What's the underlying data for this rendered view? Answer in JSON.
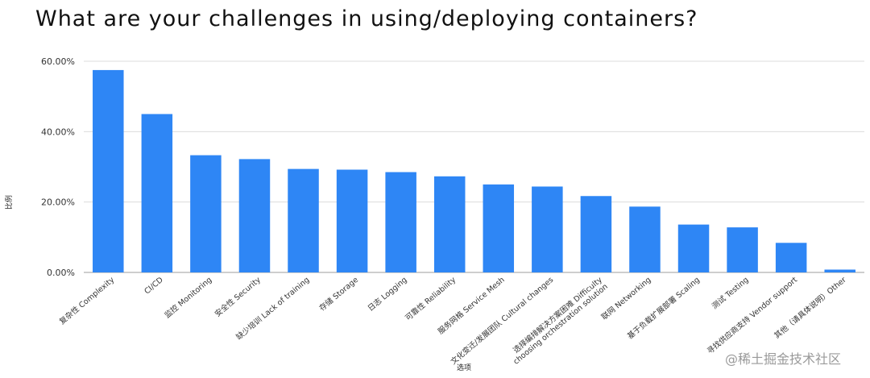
{
  "chart_data": {
    "type": "bar",
    "title": "What are your challenges in using/deploying containers?",
    "xlabel": "选项",
    "ylabel": "比例",
    "ylim": [
      0,
      60
    ],
    "yticks": [
      "0.00%",
      "20.00%",
      "40.00%",
      "60.00%"
    ],
    "ytick_values": [
      0,
      20,
      40,
      60
    ],
    "grid": true,
    "bar_color": "#2e86f5",
    "categories": [
      "复杂性 Complexity",
      "CI/CD",
      "监控 Monitoring",
      "安全性 Security",
      "缺少培训 Lack of training",
      "存储 Storage",
      "日志 Logging",
      "可靠性 Reliability",
      "服务网格 Service Mesh",
      "文化变迁/发展团队 Cultural changes",
      "选择编排解决方案困难 Difficulty choosing orchestration solution",
      "联网 Networking",
      "基于负载扩展部署 Scaling",
      "测试 Testing",
      "寻找供应商支持 Vendor support",
      "其他（请具体说明）Other"
    ],
    "values": [
      57.5,
      45.0,
      33.3,
      32.2,
      29.4,
      29.2,
      28.5,
      27.3,
      25.0,
      24.4,
      21.7,
      18.7,
      13.6,
      12.8,
      8.4,
      0.8
    ]
  },
  "watermark": "@稀土掘金技术社区"
}
